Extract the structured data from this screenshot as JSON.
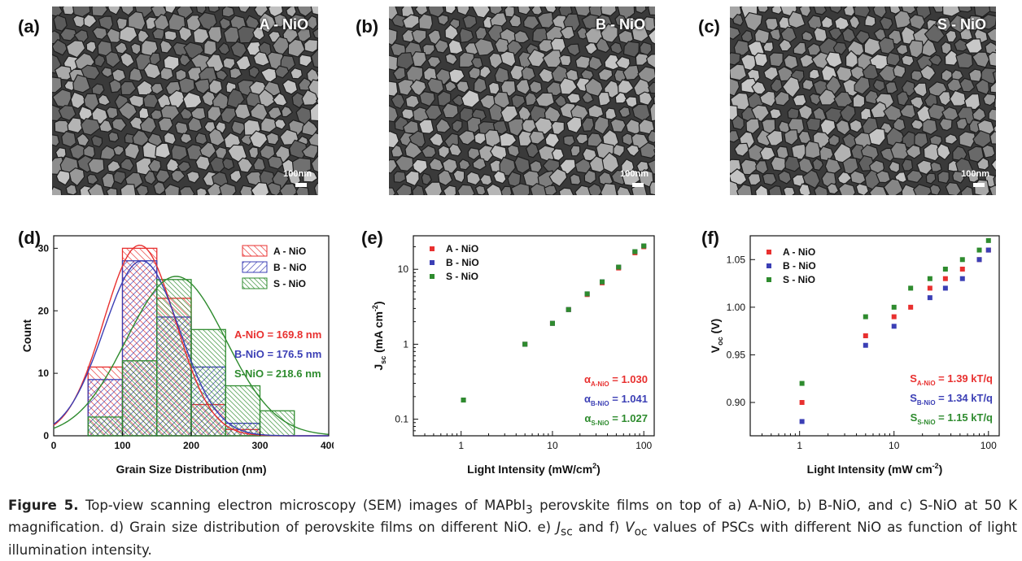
{
  "panels": {
    "a": {
      "label": "(a)",
      "tag": "A - NiO",
      "scale": "100nm"
    },
    "b": {
      "label": "(b)",
      "tag": "B - NiO",
      "scale": "100nm"
    },
    "c": {
      "label": "(c)",
      "tag": "S - NiO",
      "scale": "100nm"
    },
    "d": {
      "label": "(d)"
    },
    "e": {
      "label": "(e)"
    },
    "f": {
      "label": "(f)"
    }
  },
  "colors": {
    "A": "#e8302f",
    "B": "#3b3fb5",
    "S": "#2e8b2e"
  },
  "chart_data": [
    {
      "type": "bar",
      "panel": "d",
      "xlabel": "Grain Size Distribution (nm)",
      "ylabel": "Count",
      "xlim": [
        0,
        400
      ],
      "ylim": [
        0,
        32
      ],
      "xticks": [
        0,
        100,
        200,
        300,
        400
      ],
      "yticks": [
        0,
        10,
        20,
        30
      ],
      "bin_edges": [
        50,
        100,
        150,
        200,
        250,
        300,
        350
      ],
      "series": [
        {
          "name": "A - NiO",
          "counts": [
            11,
            30,
            22,
            5,
            1,
            0
          ],
          "mean_label": "A-NiO = 169.8 nm"
        },
        {
          "name": "B - NiO",
          "counts": [
            9,
            28,
            19,
            11,
            2,
            0
          ],
          "mean_label": "B-NiO = 176.5 nm"
        },
        {
          "name": "S - NiO",
          "counts": [
            3,
            12,
            25,
            17,
            8,
            4
          ],
          "mean_label": "S-NiO = 218.6 nm"
        }
      ],
      "fits": [
        {
          "name": "A - NiO",
          "mu": 125,
          "sigma": 52,
          "peak": 30.5
        },
        {
          "name": "B - NiO",
          "mu": 128,
          "sigma": 55,
          "peak": 28
        },
        {
          "name": "S - NiO",
          "mu": 178,
          "sigma": 72,
          "peak": 25.5
        }
      ]
    },
    {
      "type": "scatter",
      "panel": "e",
      "xscale": "log",
      "yscale": "log",
      "xlabel": "Light Intensity (mW/cm",
      "xlabel_sup": "2",
      "xlabel_end": ")",
      "ylabel_main": "J",
      "ylabel_sub": "sc",
      "ylabel_rest": " (mA cm",
      "ylabel_sup": "-2",
      "ylabel_end": ")",
      "xlim": [
        0.3,
        130
      ],
      "ylim": [
        0.06,
        28
      ],
      "xticks": [
        1,
        10,
        100
      ],
      "xtick_labels": [
        "1",
        "10",
        "100"
      ],
      "yticks": [
        0.1,
        1,
        10
      ],
      "ytick_labels": [
        "0.1",
        "1",
        "10"
      ],
      "x": [
        1.06,
        5,
        10,
        15,
        24,
        35,
        53,
        80,
        100
      ],
      "series": [
        {
          "name": "A - NiO",
          "values": [
            0.18,
            1.0,
            1.9,
            2.9,
            4.6,
            6.6,
            10.4,
            16.6,
            20.0
          ],
          "slope_label": "= 1.030",
          "alpha_sub": "A-NiO"
        },
        {
          "name": "B - NiO",
          "values": [
            0.18,
            1.0,
            1.9,
            2.9,
            4.7,
            6.8,
            10.7,
            17.2,
            20.5
          ],
          "slope_label": "= 1.041",
          "alpha_sub": "B-NiO"
        },
        {
          "name": "S - NiO",
          "values": [
            0.18,
            1.0,
            1.9,
            2.9,
            4.7,
            6.8,
            10.7,
            17.2,
            20.5
          ],
          "slope_label": "= 1.027",
          "alpha_sub": "S-NiO"
        }
      ]
    },
    {
      "type": "scatter",
      "panel": "f",
      "xscale": "log",
      "yscale": "linear",
      "xlabel": "Light Intensity (mW cm",
      "xlabel_sup": "-2",
      "xlabel_end": ")",
      "ylabel_main": "V",
      "ylabel_sub": "oc",
      "ylabel_rest": " (V)",
      "xlim": [
        0.3,
        130
      ],
      "ylim": [
        0.865,
        1.075
      ],
      "xticks": [
        1,
        10,
        100
      ],
      "xtick_labels": [
        "1",
        "10",
        "100"
      ],
      "yticks": [
        0.9,
        0.95,
        1.0,
        1.05
      ],
      "ytick_labels": [
        "0.90",
        "0.95",
        "1.00",
        "1.05"
      ],
      "x": [
        1.06,
        5,
        10,
        15,
        24,
        35,
        53,
        80,
        100
      ],
      "series": [
        {
          "name": "A - NiO",
          "values": [
            0.9,
            0.97,
            0.99,
            1.0,
            1.02,
            1.03,
            1.04,
            1.05,
            1.06
          ],
          "slope_label": "= 1.39 kT/q",
          "s_sub": "A-NiO"
        },
        {
          "name": "B - NiO",
          "values": [
            0.88,
            0.96,
            0.98,
            null,
            1.01,
            1.02,
            1.03,
            1.05,
            1.06
          ],
          "slope_label": "= 1.34 kT/q",
          "s_sub": "B-NiO"
        },
        {
          "name": "S - NiO",
          "values": [
            0.92,
            0.99,
            1.0,
            1.02,
            1.03,
            1.04,
            1.05,
            1.06,
            1.07
          ],
          "slope_label": "= 1.15 kT/q",
          "s_sub": "S-NiO"
        }
      ]
    }
  ],
  "caption": {
    "figure": "Figure 5.",
    "p1": " Top-view scanning electron microscopy (SEM) images of MAPbI",
    "p1_sub": "3",
    "p2": " perovskite films on top of a) A-NiO, b) B-NiO, and c) S-NiO at 50 K magnification. d) Grain size distribution of perovskite films on different NiO. e) ",
    "jsc_main": "J",
    "jsc_sub": "sc",
    "p3": " and f) ",
    "voc_main": "V",
    "voc_sub": "oc",
    "p4": " values of PSCs with different NiO as function of light illumination intensity."
  }
}
